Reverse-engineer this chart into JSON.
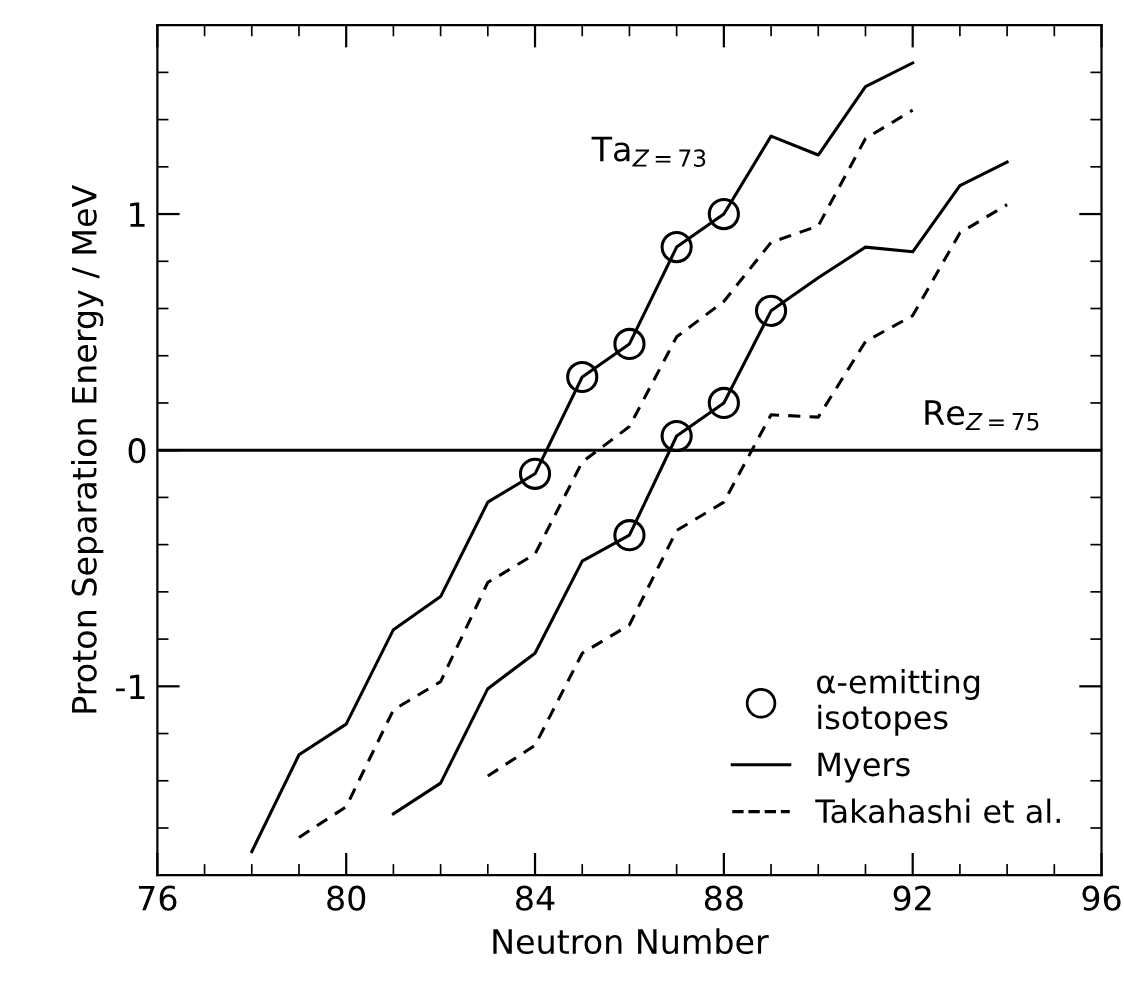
{
  "chart_data": {
    "type": "line",
    "xlabel": "Neutron Number",
    "ylabel": "Proton Separation Energy / MeV",
    "xlim": [
      76,
      96
    ],
    "ylim": [
      -1.8,
      1.8
    ],
    "xticks": [
      76,
      {
        "value": 77,
        "label": null
      },
      {
        "value": 78,
        "label": null
      },
      {
        "value": 79,
        "label": null
      },
      80,
      {
        "value": 81,
        "label": null
      },
      {
        "value": 82,
        "label": null
      },
      {
        "value": 83,
        "label": null
      },
      84,
      {
        "value": 85,
        "label": null
      },
      {
        "value": 86,
        "label": null
      },
      {
        "value": 87,
        "label": null
      },
      88,
      {
        "value": 89,
        "label": null
      },
      {
        "value": 90,
        "label": null
      },
      {
        "value": 91,
        "label": null
      },
      92,
      {
        "value": 93,
        "label": null
      },
      {
        "value": 94,
        "label": null
      },
      {
        "value": 95,
        "label": null
      },
      96
    ],
    "yticks": [
      {
        "value": -1.6,
        "label": null
      },
      {
        "value": -1.4,
        "label": null
      },
      {
        "value": -1.2,
        "label": null
      },
      -1,
      {
        "value": -0.8,
        "label": null
      },
      {
        "value": -0.6,
        "label": null
      },
      {
        "value": -0.4,
        "label": null
      },
      {
        "value": -0.2,
        "label": null
      },
      0,
      {
        "value": 0.2,
        "label": null
      },
      {
        "value": 0.4,
        "label": null
      },
      {
        "value": 0.6,
        "label": null
      },
      {
        "value": 0.8,
        "label": null
      },
      1,
      {
        "value": 1.2,
        "label": null
      },
      {
        "value": 1.4,
        "label": null
      },
      {
        "value": 1.6,
        "label": null
      }
    ],
    "grid": false,
    "legend": "bottom right",
    "series": [
      {
        "name": "Myers",
        "line_style": "solid",
        "marker": "none",
        "color": "#000000",
        "x": [
          78,
          79,
          80,
          81,
          82,
          83,
          84,
          85,
          86,
          87,
          88,
          89,
          90,
          91,
          92
        ],
        "values": [
          -1.7,
          -1.29,
          -1.16,
          -0.76,
          -0.62,
          -0.22,
          -0.1,
          0.31,
          0.45,
          0.86,
          1.0,
          1.33,
          1.25,
          1.54,
          1.64
        ]
      },
      {
        "name": "Takahashi et al.",
        "line_style": "dashed",
        "marker": "none",
        "color": "#000000",
        "x": [
          79,
          80,
          81,
          82,
          83,
          84,
          85,
          86,
          87,
          88,
          89,
          90,
          91,
          92
        ],
        "values": [
          -1.64,
          -1.51,
          -1.1,
          -0.98,
          -0.56,
          -0.44,
          -0.05,
          0.1,
          0.48,
          0.63,
          0.88,
          0.95,
          1.32,
          1.44
        ]
      },
      {
        "line_style": "solid",
        "marker": "none",
        "color": "#000000",
        "x": [
          81,
          82,
          83,
          84,
          85,
          86,
          87,
          88,
          89,
          90,
          91,
          92,
          93,
          94
        ],
        "values": [
          -1.54,
          -1.41,
          -1.01,
          -0.86,
          -0.47,
          -0.36,
          0.06,
          0.2,
          0.59,
          0.73,
          0.86,
          0.84,
          1.12,
          1.22
        ]
      },
      {
        "line_style": "dashed",
        "marker": "none",
        "color": "#000000",
        "x": [
          83,
          84,
          85,
          86,
          87,
          88,
          89,
          90,
          91,
          92,
          93,
          94
        ],
        "values": [
          -1.38,
          -1.25,
          -0.86,
          -0.74,
          -0.34,
          -0.22,
          0.15,
          0.14,
          0.46,
          0.57,
          0.92,
          1.04
        ]
      },
      {
        "name": "α-emitting\nisotopes",
        "type": "scatter",
        "marker": "circle",
        "color": "#000000",
        "x": [
          84,
          85,
          86,
          87,
          88,
          86,
          87,
          88,
          89
        ],
        "values": [
          -0.1,
          0.31,
          0.45,
          0.86,
          1.0,
          -0.36,
          0.06,
          0.2,
          0.59
        ]
      }
    ],
    "ref_lines": [
      {
        "axis": "y",
        "value": 0,
        "color": "#000000",
        "line_style": "solid"
      }
    ],
    "annotations": [
      "Ta$_{Z=73}$",
      "Re$_{Z=75}$"
    ]
  }
}
